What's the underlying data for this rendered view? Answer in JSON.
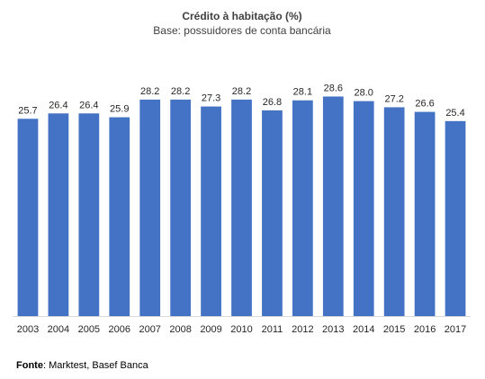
{
  "chart_data": {
    "type": "bar",
    "title": "Crédito à habitação (%)",
    "subtitle": "Base: possuidores de conta bancária",
    "categories": [
      "2003",
      "2004",
      "2005",
      "2006",
      "2007",
      "2008",
      "2009",
      "2010",
      "2011",
      "2012",
      "2013",
      "2014",
      "2015",
      "2016",
      "2017"
    ],
    "values": [
      25.7,
      26.4,
      26.4,
      25.9,
      28.2,
      28.2,
      27.3,
      28.2,
      26.8,
      28.1,
      28.6,
      28.0,
      27.2,
      26.6,
      25.4
    ],
    "data_labels": [
      "25.7",
      "26.4",
      "26.4",
      "25.9",
      "28.2",
      "28.2",
      "27.3",
      "28.2",
      "26.8",
      "28.1",
      "28.6",
      "28.0",
      "27.2",
      "26.6",
      "25.4"
    ],
    "xlabel": "",
    "ylabel": "",
    "ylim": [
      0,
      30
    ],
    "bar_color": "#4472C4",
    "axis_color": "#D9D9D9",
    "grid": false,
    "legend": "none"
  },
  "source": {
    "label": "Fonte",
    "text": ": Marktest, Basef Banca"
  }
}
